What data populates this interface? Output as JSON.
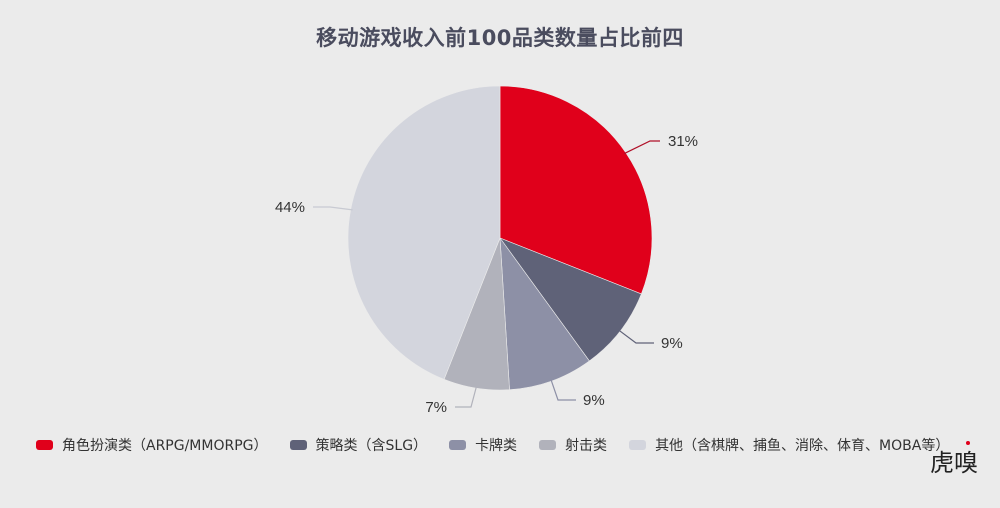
{
  "title": "移动游戏收入前100品类数量占比前四",
  "watermark": "虎嗅",
  "chart_data": {
    "type": "pie",
    "title": "移动游戏收入前100品类数量占比前四",
    "categories": [
      "角色扮演类（ARPG/MMORPG）",
      "策略类（含SLG）",
      "卡牌类",
      "射击类",
      "其他（含棋牌、捕鱼、消除、体育、MOBA等）"
    ],
    "values": [
      31,
      9,
      9,
      7,
      44
    ],
    "labels": [
      "31%",
      "9%",
      "9%",
      "7%",
      "44%"
    ],
    "colors": [
      "#e0001b",
      "#5f6278",
      "#8d90a6",
      "#b1b2bb",
      "#d3d5dd"
    ],
    "start_angle": "12 o'clock, clockwise",
    "legend_position": "bottom"
  },
  "legend": [
    {
      "label": "角色扮演类（ARPG/MMORPG）",
      "color": "#e0001b"
    },
    {
      "label": "策略类（含SLG）",
      "color": "#5f6278"
    },
    {
      "label": "卡牌类",
      "color": "#8d90a6"
    },
    {
      "label": "射击类",
      "color": "#b1b2bb"
    },
    {
      "label": "其他（含棋牌、捕鱼、消除、体育、MOBA等）",
      "color": "#d3d5dd"
    }
  ]
}
